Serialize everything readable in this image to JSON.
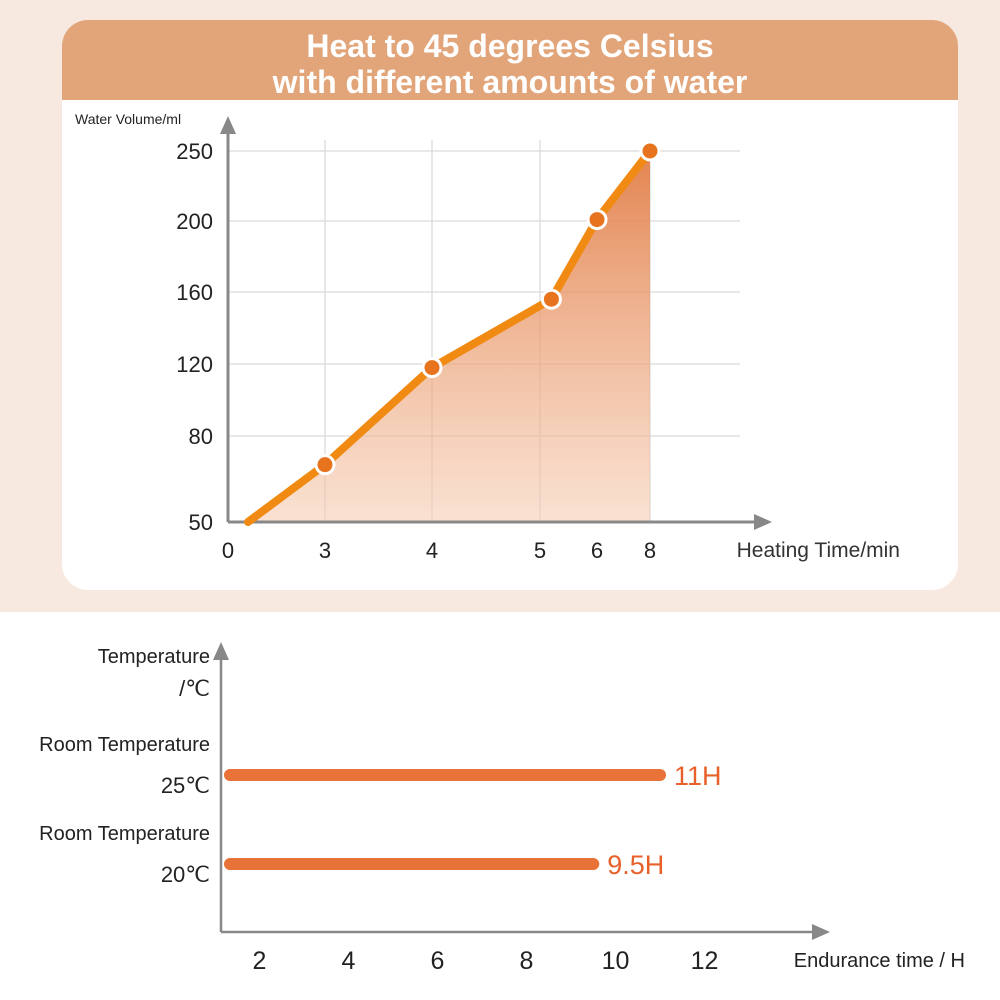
{
  "colors": {
    "accent_orange": "#e8731e",
    "line_orange": "#f08a12",
    "banner": "#e2a57a",
    "panel_bg": "#f7e9df",
    "axis": "#888888",
    "grid": "#d9d9d9",
    "bar": "#e87237",
    "label_orange": "#e8612a"
  },
  "chart_data": [
    {
      "type": "line",
      "title_line1": "Heat to 45 degrees Celsius",
      "title_line2": "with different amounts of water",
      "xlabel": "Heating Time/min",
      "ylabel": "Water Volume/ml",
      "x_ticks": [
        "0",
        "3",
        "4",
        "5",
        "6",
        "8"
      ],
      "y_ticks": [
        "50",
        "80",
        "120",
        "160",
        "200",
        "250"
      ],
      "area_fill": true,
      "grid": true,
      "points": [
        {
          "x": 3,
          "y": 70
        },
        {
          "x": 4,
          "y": 118
        },
        {
          "x": 5.2,
          "y": 156
        },
        {
          "x": 6,
          "y": 201
        },
        {
          "x": 8,
          "y": 250
        }
      ]
    },
    {
      "type": "bar",
      "orientation": "horizontal",
      "ylabel_line1": "Temperature",
      "ylabel_line2": "/℃",
      "xlabel": "Endurance time / H",
      "x_ticks": [
        "2",
        "4",
        "6",
        "8",
        "10",
        "12"
      ],
      "bars": [
        {
          "label_line1": "Room Temperature",
          "label_line2": "25℃",
          "value": 11,
          "value_label": "11H"
        },
        {
          "label_line1": "Room Temperature",
          "label_line2": "20℃",
          "value": 9.5,
          "value_label": "9.5H"
        }
      ]
    }
  ]
}
